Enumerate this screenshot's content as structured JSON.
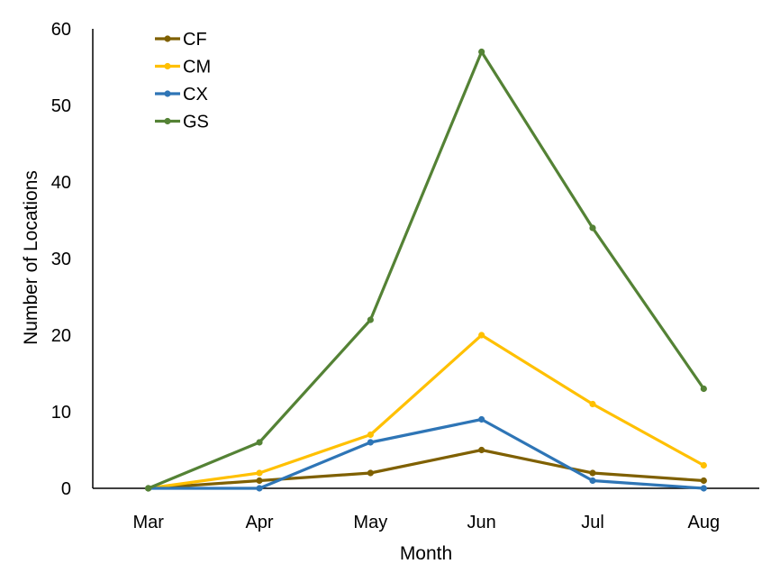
{
  "chart_data": {
    "type": "line",
    "title": "",
    "xlabel": "Month",
    "ylabel": "Number of Locations",
    "categories": [
      "Mar",
      "Apr",
      "May",
      "Jun",
      "Jul",
      "Aug"
    ],
    "ylim": [
      0,
      60
    ],
    "yticks": [
      "0",
      "10",
      "20",
      "30",
      "40",
      "50",
      "60"
    ],
    "grid": false,
    "legend_position": "top-left",
    "series": [
      {
        "name": "CF",
        "color": "#7F6000",
        "values": [
          0,
          1,
          2,
          5,
          2,
          1
        ]
      },
      {
        "name": "CM",
        "color": "#FFC000",
        "values": [
          0,
          2,
          7,
          20,
          11,
          3
        ]
      },
      {
        "name": "CX",
        "color": "#2E75B6",
        "values": [
          0,
          0,
          6,
          9,
          1,
          0
        ]
      },
      {
        "name": "GS",
        "color": "#548235",
        "values": [
          0,
          6,
          22,
          57,
          34,
          13
        ]
      }
    ]
  }
}
